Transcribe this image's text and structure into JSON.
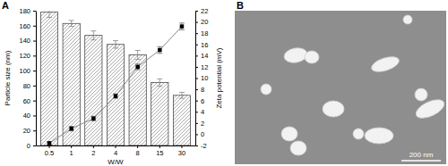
{
  "chart_data": {
    "type": "bar",
    "x_label": "W/W",
    "y_label": "Particle size (nm)",
    "y2_label": "Zeta potential (mV)",
    "categories": [
      "0.5",
      "1",
      "2",
      "4",
      "8",
      "15",
      "30"
    ],
    "series": [
      {
        "type": "bar",
        "color": "#ffffff",
        "values": [
          178,
          163,
          147,
          135,
          121,
          84,
          67
        ],
        "errors": [
          7,
          4,
          6,
          5,
          6,
          5,
          4
        ]
      },
      {
        "type": "line",
        "axis": "y2",
        "color": "#000000",
        "marker": "square",
        "line_style": "solid",
        "values": [
          -1.6,
          1.0,
          2.8,
          6.8,
          12.0,
          15.0,
          19.2
        ],
        "errors": [
          0.3,
          0.4,
          0.4,
          0.4,
          0.5,
          0.6,
          0.6
        ]
      }
    ],
    "ylim": [
      0,
      180
    ],
    "yticks": [
      0,
      20,
      40,
      60,
      80,
      100,
      120,
      140,
      160,
      180
    ],
    "y2lim": [
      -2,
      22
    ],
    "y2ticks": [
      -2,
      0,
      2,
      4,
      6,
      8,
      10,
      12,
      14,
      16,
      18,
      20,
      22
    ],
    "grid": false
  },
  "panel_labels": [
    "A",
    "B"
  ],
  "micrograph": {
    "scale_bar": "200 nm"
  }
}
